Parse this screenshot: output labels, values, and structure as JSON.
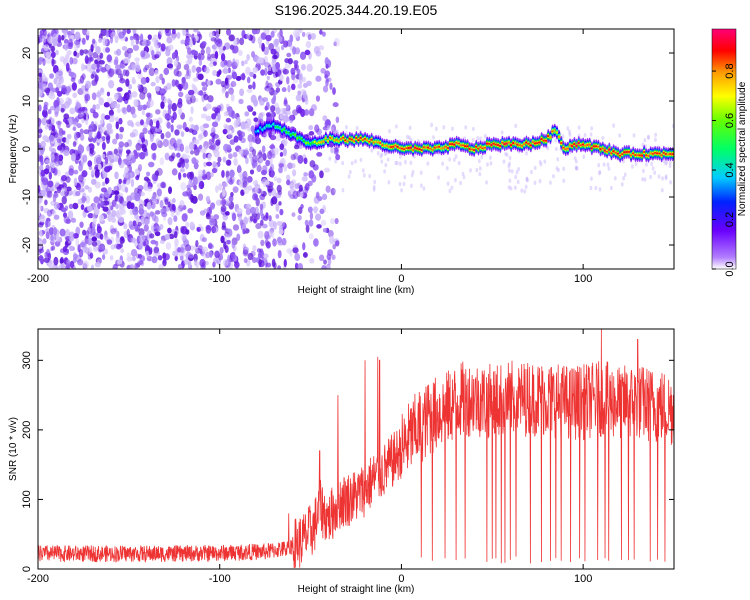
{
  "title": "S196.2025.344.20.19.E05",
  "colors": {
    "snr_line": "#ee3333",
    "spectrogram_low": "#e0d4fb",
    "spectrogram_mid": "#6a1ee8",
    "ridge": "#ff2a2a"
  },
  "chart_data": [
    {
      "type": "heatmap",
      "xlabel": "Height of straight line (km)",
      "ylabel": "Frequency (Hz)",
      "xlim": [
        -200,
        150
      ],
      "ylim": [
        -25,
        25
      ],
      "xticks": [
        -200,
        -100,
        0,
        100
      ],
      "yticks": [
        20,
        10,
        0,
        -10,
        -20
      ],
      "colorbar": {
        "label": "Normalized spectral amplitude",
        "range": [
          0,
          0.97
        ],
        "ticks": [
          "0.0",
          "0.2",
          "0.4",
          "0.6",
          "0.8"
        ],
        "colormap": [
          "#ffffff",
          "#8000ff",
          "#0000ff",
          "#00ffff",
          "#00ff00",
          "#ffff00",
          "#ff8000",
          "#ff0000",
          "#ff0080"
        ]
      },
      "noise_region_km": [
        -200,
        -40
      ],
      "ridge": {
        "height_km": [
          -80,
          -70,
          -60,
          -50,
          -40,
          -30,
          -20,
          -10,
          0,
          10,
          20,
          30,
          40,
          50,
          60,
          70,
          80,
          85,
          90,
          95,
          100,
          110,
          120,
          130,
          140,
          150
        ],
        "frequency_hz": [
          4,
          5,
          3,
          1,
          2,
          2,
          2,
          1,
          0,
          0,
          0,
          1,
          0,
          1,
          1,
          1,
          2,
          4,
          0,
          1,
          1,
          0,
          -1,
          -1,
          -1,
          -1
        ],
        "amplitude": [
          0.35,
          0.45,
          0.5,
          0.55,
          0.75,
          0.8,
          0.8,
          0.75,
          0.9,
          0.85,
          0.8,
          0.85,
          0.85,
          0.9,
          0.85,
          0.85,
          0.9,
          0.7,
          0.85,
          0.9,
          0.85,
          0.9,
          0.85,
          0.85,
          0.8,
          0.8
        ]
      }
    },
    {
      "type": "line",
      "xlabel": "Height of straight line (km)",
      "ylabel": "SNR (10 * v/v)",
      "xlim": [
        -200,
        150
      ],
      "ylim": [
        0,
        345
      ],
      "xticks": [
        -200,
        -100,
        0,
        100
      ],
      "yticks": [
        0,
        100,
        200,
        300
      ],
      "series": [
        {
          "x": [
            -200,
            -175,
            -150,
            -125,
            -100,
            -75,
            -62,
            -55,
            -48,
            -45,
            -40,
            -35,
            -30,
            -25,
            -20,
            -15,
            -10,
            -5,
            0,
            5,
            10,
            15,
            20,
            25,
            30,
            35,
            40,
            50,
            60,
            70,
            80,
            90,
            100,
            110,
            120,
            130,
            140,
            150
          ],
          "values": [
            22,
            22,
            22,
            22,
            23,
            25,
            30,
            40,
            60,
            90,
            70,
            95,
            100,
            105,
            115,
            130,
            140,
            155,
            170,
            190,
            205,
            215,
            225,
            230,
            240,
            245,
            245,
            240,
            245,
            245,
            245,
            240,
            240,
            245,
            240,
            240,
            235,
            230
          ]
        }
      ],
      "spikes": [
        {
          "x": -62,
          "y": 80
        },
        {
          "x": -45,
          "y": 170
        },
        {
          "x": -40,
          "y": 90
        },
        {
          "x": -35,
          "y": 250
        },
        {
          "x": -20,
          "y": 300
        },
        {
          "x": -13,
          "y": 305
        },
        {
          "x": -12,
          "y": 300
        },
        {
          "x": 15,
          "y": 265
        },
        {
          "x": 110,
          "y": 345
        },
        {
          "x": 130,
          "y": 330
        }
      ],
      "dropouts_km": [
        11,
        17,
        24,
        30,
        35,
        47,
        50,
        52,
        55,
        57,
        60,
        63,
        71,
        77,
        82,
        85,
        88,
        93,
        98,
        101,
        108,
        112,
        114,
        121,
        125,
        128,
        137,
        141,
        145
      ]
    }
  ]
}
